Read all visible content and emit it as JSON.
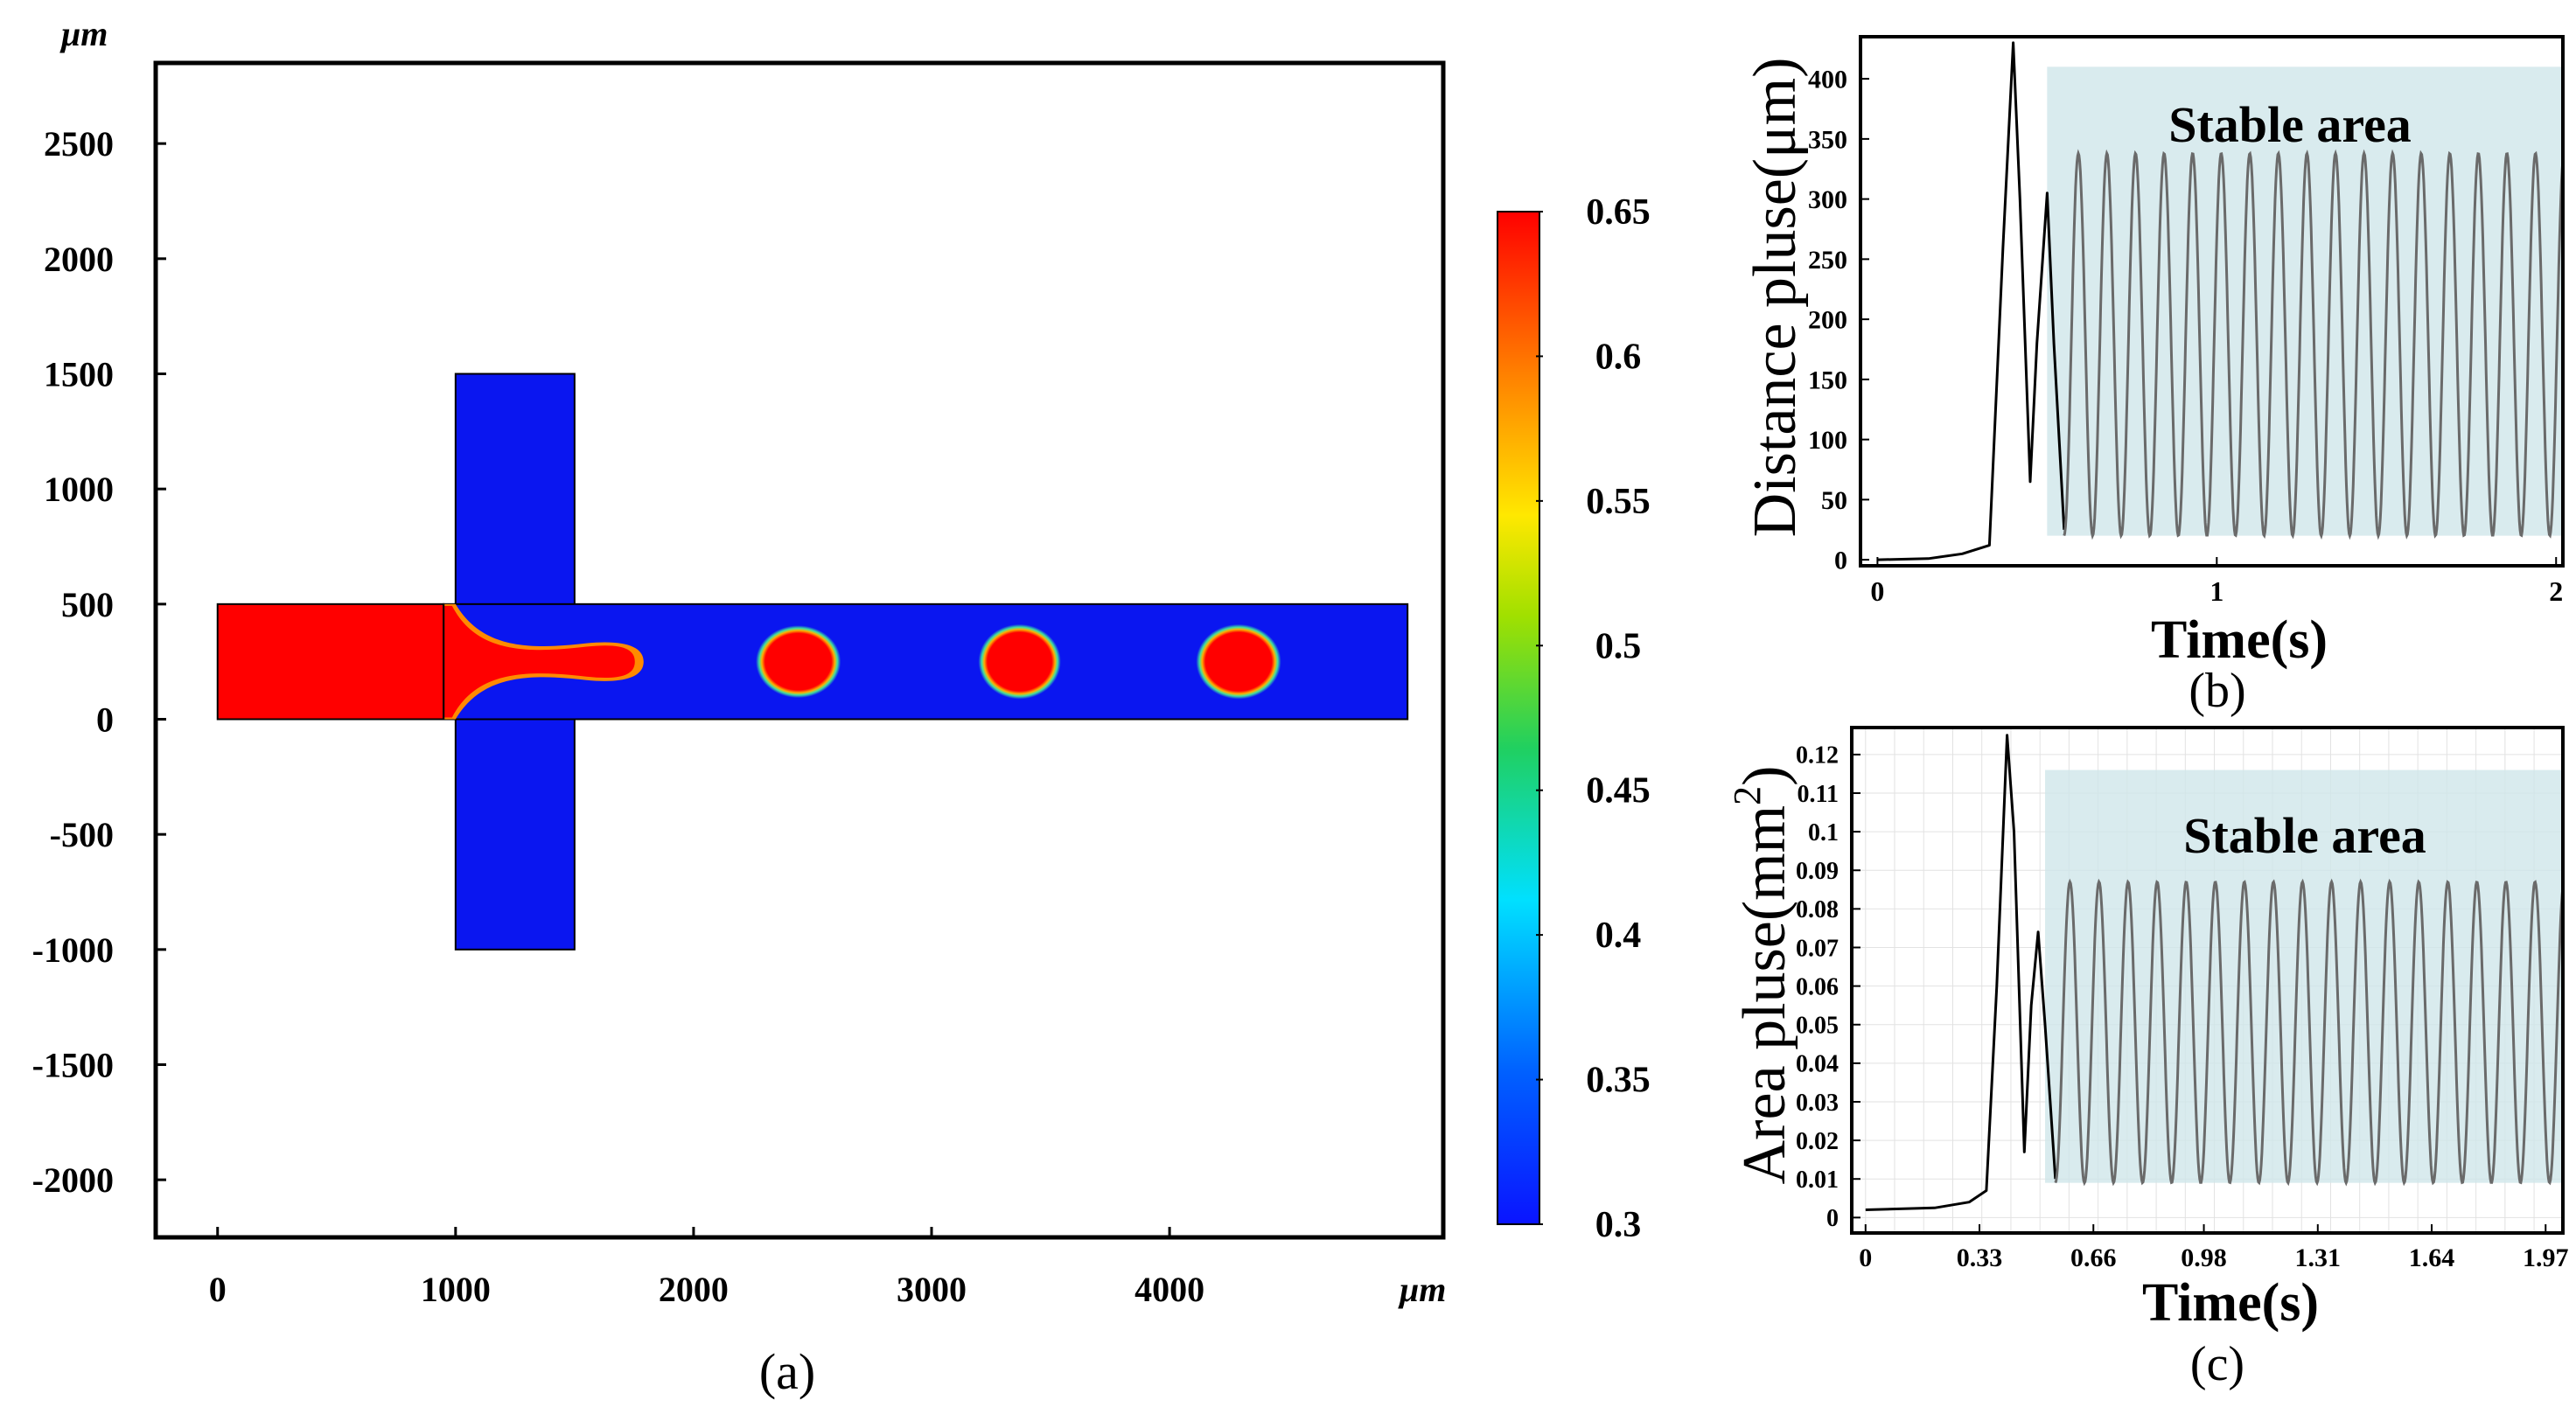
{
  "chart_data": [
    {
      "panel": "(a)",
      "type": "heatmap",
      "x_unit": "μm",
      "y_unit": "μm",
      "xlim": [
        -260,
        5150
      ],
      "ylim": [
        -2250,
        2850
      ],
      "x_ticks": [
        0,
        1000,
        2000,
        3000,
        4000
      ],
      "y_ticks": [
        2500,
        2000,
        1500,
        1000,
        500,
        0,
        -500,
        -1000,
        -1500,
        -2000
      ],
      "channels": [
        {
          "name": "inlet",
          "x": [
            0,
            950
          ],
          "y": [
            0,
            500
          ],
          "value": 0.65
        },
        {
          "name": "cross-channel",
          "x": [
            1000,
            1500
          ],
          "y": [
            -1000,
            1500
          ],
          "value": 0.3
        },
        {
          "name": "main-channel",
          "x": [
            950,
            5000
          ],
          "y": [
            0,
            500
          ],
          "value": 0.3
        }
      ],
      "droplets": [
        {
          "cx": 2440,
          "cy": 250,
          "rx": 170,
          "ry": 150
        },
        {
          "cx": 3370,
          "cy": 250,
          "rx": 165,
          "ry": 155
        },
        {
          "cx": 4290,
          "cy": 250,
          "rx": 170,
          "ry": 155
        }
      ],
      "colorbar": {
        "min": 0.3,
        "max": 0.65,
        "ticks": [
          0.65,
          0.6,
          0.55,
          0.5,
          0.45,
          0.4,
          0.35,
          0.3
        ]
      }
    },
    {
      "panel": "(b)",
      "type": "line",
      "xlabel": "Time(s)",
      "ylabel": "Distance pluse(μm)",
      "xlim": [
        -0.05,
        2.02
      ],
      "ylim": [
        -5,
        435
      ],
      "x_ticks": [
        0,
        1,
        2
      ],
      "y_ticks": [
        0,
        50,
        100,
        150,
        200,
        250,
        300,
        350,
        400
      ],
      "annotation": "Stable area",
      "stable_range": [
        0.5,
        2.02,
        20,
        410
      ],
      "transient": [
        [
          0,
          0
        ],
        [
          0.15,
          1
        ],
        [
          0.25,
          5
        ],
        [
          0.33,
          12
        ],
        [
          0.37,
          260
        ],
        [
          0.4,
          430
        ],
        [
          0.42,
          300
        ],
        [
          0.45,
          65
        ],
        [
          0.47,
          180
        ],
        [
          0.5,
          305
        ],
        [
          0.52,
          180
        ],
        [
          0.55,
          25
        ]
      ],
      "oscillation": {
        "start": 0.55,
        "end": 2.02,
        "period": 0.0842,
        "min": 20,
        "max": 338
      }
    },
    {
      "panel": "(c)",
      "type": "line",
      "xlabel": "Time(s)",
      "ylabel": "Area pluse(mm",
      "ylabel_sup": "2",
      "ylabel_end": ")",
      "xlim": [
        -0.04,
        2.02
      ],
      "ylim": [
        -0.004,
        0.127
      ],
      "x_ticks": [
        0,
        0.33,
        0.66,
        0.98,
        1.31,
        1.64,
        1.97
      ],
      "y_ticks": [
        0,
        0.01,
        0.02,
        0.03,
        0.04,
        0.05,
        0.06,
        0.07,
        0.08,
        0.09,
        0.1,
        0.11,
        0.12
      ],
      "annotation": "Stable area",
      "stable_range": [
        0.52,
        2.02,
        0.009,
        0.116
      ],
      "transient": [
        [
          0,
          0.002
        ],
        [
          0.2,
          0.0025
        ],
        [
          0.3,
          0.004
        ],
        [
          0.35,
          0.007
        ],
        [
          0.38,
          0.06
        ],
        [
          0.41,
          0.125
        ],
        [
          0.43,
          0.1
        ],
        [
          0.46,
          0.017
        ],
        [
          0.48,
          0.055
        ],
        [
          0.5,
          0.074
        ],
        [
          0.52,
          0.05
        ],
        [
          0.55,
          0.01
        ]
      ],
      "oscillation": {
        "start": 0.55,
        "end": 2.02,
        "period": 0.0842,
        "min": 0.009,
        "max": 0.087
      }
    }
  ],
  "labels": {
    "a": "(a)",
    "b": "(b)",
    "c": "(c)"
  },
  "colors": {
    "high": "#ff0000",
    "low": "#0a16f0",
    "frame": "#000000",
    "stable_fill": "#cfe6ea",
    "curve": "#6a6a6a"
  }
}
